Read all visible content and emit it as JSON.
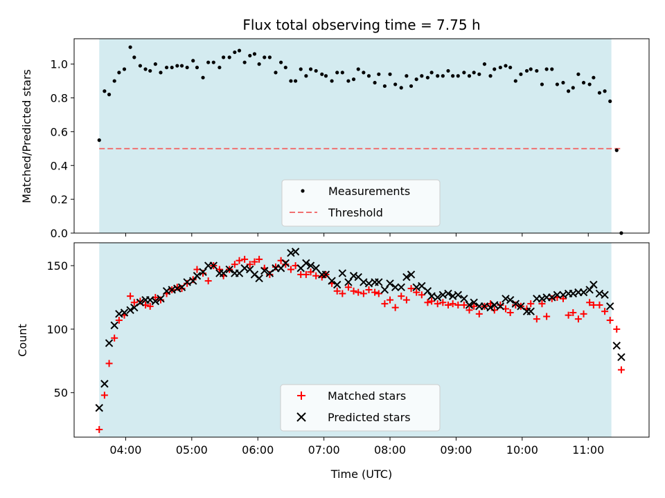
{
  "chart_data": [
    {
      "type": "scatter",
      "title": "Flux total observing time = 7.75 h",
      "xlabel": "",
      "ylabel": "Matched/Predicted stars",
      "xlim_hours": [
        3.22,
        11.92
      ],
      "ylim": [
        0.0,
        1.15
      ],
      "yticks": [
        0.0,
        0.2,
        0.4,
        0.6,
        0.8,
        1.0
      ],
      "ytick_labels": [
        "0.0",
        "0.2",
        "0.4",
        "0.6",
        "0.8",
        "1.0"
      ],
      "xticks_hours": [
        4,
        5,
        6,
        7,
        8,
        9,
        10,
        11
      ],
      "observing_window_hours": [
        3.6,
        11.35
      ],
      "window_color": "#d4ebf0",
      "threshold": {
        "value": 0.5,
        "x_hours": [
          3.6,
          11.5
        ],
        "color": "#f07070"
      },
      "legend": {
        "placement": "lower-center",
        "entries": [
          "Measurements",
          "Threshold"
        ]
      },
      "series": [
        {
          "name": "Measurements",
          "marker": "dot",
          "color": "#000000",
          "x_hours": [
            3.6,
            3.68,
            3.75,
            3.83,
            3.9,
            3.98,
            4.07,
            4.13,
            4.22,
            4.3,
            4.37,
            4.45,
            4.53,
            4.62,
            4.7,
            4.78,
            4.85,
            4.93,
            5.02,
            5.08,
            5.17,
            5.25,
            5.33,
            5.42,
            5.48,
            5.57,
            5.65,
            5.72,
            5.8,
            5.88,
            5.95,
            6.02,
            6.1,
            6.18,
            6.27,
            6.35,
            6.42,
            6.5,
            6.57,
            6.65,
            6.73,
            6.8,
            6.88,
            6.97,
            7.03,
            7.12,
            7.2,
            7.28,
            7.37,
            7.45,
            7.52,
            7.6,
            7.68,
            7.77,
            7.83,
            7.92,
            8.0,
            8.08,
            8.17,
            8.25,
            8.32,
            8.4,
            8.48,
            8.57,
            8.63,
            8.72,
            8.8,
            8.88,
            8.95,
            9.03,
            9.12,
            9.2,
            9.27,
            9.35,
            9.43,
            9.52,
            9.58,
            9.67,
            9.75,
            9.82,
            9.9,
            9.98,
            10.07,
            10.13,
            10.22,
            10.3,
            10.37,
            10.45,
            10.53,
            10.62,
            10.7,
            10.77,
            10.85,
            10.93,
            11.02,
            11.08,
            11.17,
            11.25,
            11.33,
            11.43,
            11.5
          ],
          "y": [
            0.55,
            0.84,
            0.82,
            0.9,
            0.95,
            0.97,
            1.1,
            1.04,
            0.99,
            0.97,
            0.96,
            1.0,
            0.95,
            0.98,
            0.98,
            0.99,
            0.99,
            0.98,
            1.02,
            0.98,
            0.92,
            1.01,
            1.01,
            0.98,
            1.04,
            1.04,
            1.07,
            1.08,
            1.01,
            1.05,
            1.06,
            1.0,
            1.04,
            1.04,
            0.95,
            1.01,
            0.98,
            0.9,
            0.9,
            0.97,
            0.93,
            0.97,
            0.96,
            0.94,
            0.93,
            0.9,
            0.95,
            0.95,
            0.9,
            0.91,
            0.97,
            0.95,
            0.93,
            0.89,
            0.94,
            0.87,
            0.94,
            0.88,
            0.86,
            0.93,
            0.87,
            0.91,
            0.93,
            0.92,
            0.95,
            0.93,
            0.93,
            0.96,
            0.93,
            0.93,
            0.95,
            0.93,
            0.95,
            0.94,
            1.0,
            0.93,
            0.97,
            0.98,
            0.99,
            0.98,
            0.9,
            0.94,
            0.96,
            0.97,
            0.96,
            0.88,
            0.97,
            0.97,
            0.88,
            0.89,
            0.84,
            0.86,
            0.94,
            0.89,
            0.88,
            0.92,
            0.83,
            0.84,
            0.78,
            0.49,
            0.0
          ]
        }
      ]
    },
    {
      "type": "scatter",
      "title": "",
      "xlabel": "Time (UTC)",
      "ylabel": "Count",
      "xlim_hours": [
        3.22,
        11.92
      ],
      "ylim": [
        15,
        168
      ],
      "yticks": [
        50,
        100,
        150
      ],
      "ytick_labels": [
        "50",
        "100",
        "150"
      ],
      "xticks_hours": [
        4,
        5,
        6,
        7,
        8,
        9,
        10,
        11
      ],
      "xtick_labels": [
        "04:00",
        "05:00",
        "06:00",
        "07:00",
        "08:00",
        "09:00",
        "10:00",
        "11:00"
      ],
      "observing_window_hours": [
        3.6,
        11.35
      ],
      "window_color": "#d4ebf0",
      "legend": {
        "placement": "lower-center",
        "entries": [
          "Matched stars",
          "Predicted stars"
        ]
      },
      "series": [
        {
          "name": "Matched stars",
          "marker": "plus",
          "color": "#ff0000",
          "x_hours": [
            3.6,
            3.68,
            3.75,
            3.83,
            3.9,
            3.98,
            4.07,
            4.13,
            4.22,
            4.3,
            4.37,
            4.45,
            4.53,
            4.62,
            4.7,
            4.78,
            4.85,
            4.93,
            5.02,
            5.08,
            5.17,
            5.25,
            5.33,
            5.42,
            5.48,
            5.57,
            5.65,
            5.72,
            5.8,
            5.88,
            5.95,
            6.02,
            6.1,
            6.18,
            6.27,
            6.35,
            6.42,
            6.5,
            6.57,
            6.65,
            6.73,
            6.8,
            6.88,
            6.97,
            7.03,
            7.12,
            7.2,
            7.28,
            7.37,
            7.45,
            7.52,
            7.6,
            7.68,
            7.77,
            7.83,
            7.92,
            8.0,
            8.08,
            8.17,
            8.25,
            8.32,
            8.4,
            8.48,
            8.57,
            8.63,
            8.72,
            8.8,
            8.88,
            8.95,
            9.03,
            9.12,
            9.2,
            9.27,
            9.35,
            9.43,
            9.52,
            9.58,
            9.67,
            9.75,
            9.82,
            9.9,
            9.98,
            10.07,
            10.13,
            10.22,
            10.3,
            10.37,
            10.45,
            10.53,
            10.62,
            10.7,
            10.77,
            10.85,
            10.93,
            11.02,
            11.08,
            11.17,
            11.25,
            11.33,
            11.43,
            11.5
          ],
          "y": [
            21,
            48,
            73,
            93,
            107,
            111,
            126,
            121,
            122,
            119,
            118,
            125,
            123,
            128,
            131,
            133,
            132,
            136,
            139,
            147,
            144,
            138,
            150,
            147,
            142,
            147,
            151,
            154,
            155,
            151,
            153,
            155,
            148,
            143,
            149,
            154,
            151,
            147,
            150,
            143,
            143,
            145,
            142,
            141,
            143,
            136,
            130,
            128,
            133,
            130,
            129,
            128,
            131,
            129,
            128,
            120,
            123,
            117,
            126,
            123,
            132,
            129,
            127,
            121,
            122,
            120,
            121,
            119,
            120,
            119,
            119,
            115,
            118,
            112,
            118,
            120,
            115,
            119,
            116,
            113,
            119,
            118,
            116,
            120,
            108,
            120,
            110,
            124,
            125,
            124,
            111,
            113,
            108,
            112,
            121,
            119,
            119,
            114,
            107,
            100,
            68
          ]
        },
        {
          "name": "Predicted stars",
          "marker": "cross",
          "color": "#000000",
          "x_hours": [
            3.6,
            3.68,
            3.75,
            3.83,
            3.9,
            3.98,
            4.07,
            4.13,
            4.22,
            4.3,
            4.37,
            4.45,
            4.53,
            4.62,
            4.7,
            4.78,
            4.85,
            4.93,
            5.02,
            5.08,
            5.17,
            5.25,
            5.33,
            5.42,
            5.48,
            5.57,
            5.65,
            5.72,
            5.8,
            5.88,
            5.95,
            6.02,
            6.1,
            6.18,
            6.27,
            6.35,
            6.42,
            6.5,
            6.57,
            6.65,
            6.73,
            6.8,
            6.88,
            6.97,
            7.03,
            7.12,
            7.2,
            7.28,
            7.37,
            7.45,
            7.52,
            7.6,
            7.68,
            7.77,
            7.83,
            7.92,
            8.0,
            8.08,
            8.17,
            8.25,
            8.32,
            8.4,
            8.48,
            8.57,
            8.63,
            8.72,
            8.8,
            8.88,
            8.95,
            9.03,
            9.12,
            9.2,
            9.27,
            9.35,
            9.43,
            9.52,
            9.58,
            9.67,
            9.75,
            9.82,
            9.9,
            9.98,
            10.07,
            10.13,
            10.22,
            10.3,
            10.37,
            10.45,
            10.53,
            10.62,
            10.7,
            10.77,
            10.85,
            10.93,
            11.02,
            11.08,
            11.17,
            11.25,
            11.33,
            11.43,
            11.5
          ],
          "y": [
            38,
            57,
            89,
            103,
            112,
            113,
            115,
            117,
            121,
            123,
            123,
            122,
            124,
            130,
            131,
            132,
            133,
            137,
            138,
            142,
            145,
            150,
            150,
            144,
            144,
            147,
            144,
            144,
            148,
            147,
            143,
            140,
            146,
            144,
            148,
            148,
            152,
            160,
            161,
            148,
            152,
            150,
            148,
            143,
            143,
            138,
            135,
            144,
            137,
            142,
            141,
            137,
            136,
            137,
            137,
            131,
            136,
            133,
            133,
            141,
            143,
            133,
            134,
            130,
            126,
            125,
            127,
            128,
            126,
            127,
            124,
            119,
            121,
            118,
            118,
            117,
            119,
            118,
            124,
            123,
            120,
            118,
            114,
            114,
            124,
            124,
            125,
            125,
            127,
            127,
            128,
            128,
            129,
            129,
            131,
            135,
            128,
            127,
            118,
            87,
            78
          ]
        }
      ]
    }
  ]
}
